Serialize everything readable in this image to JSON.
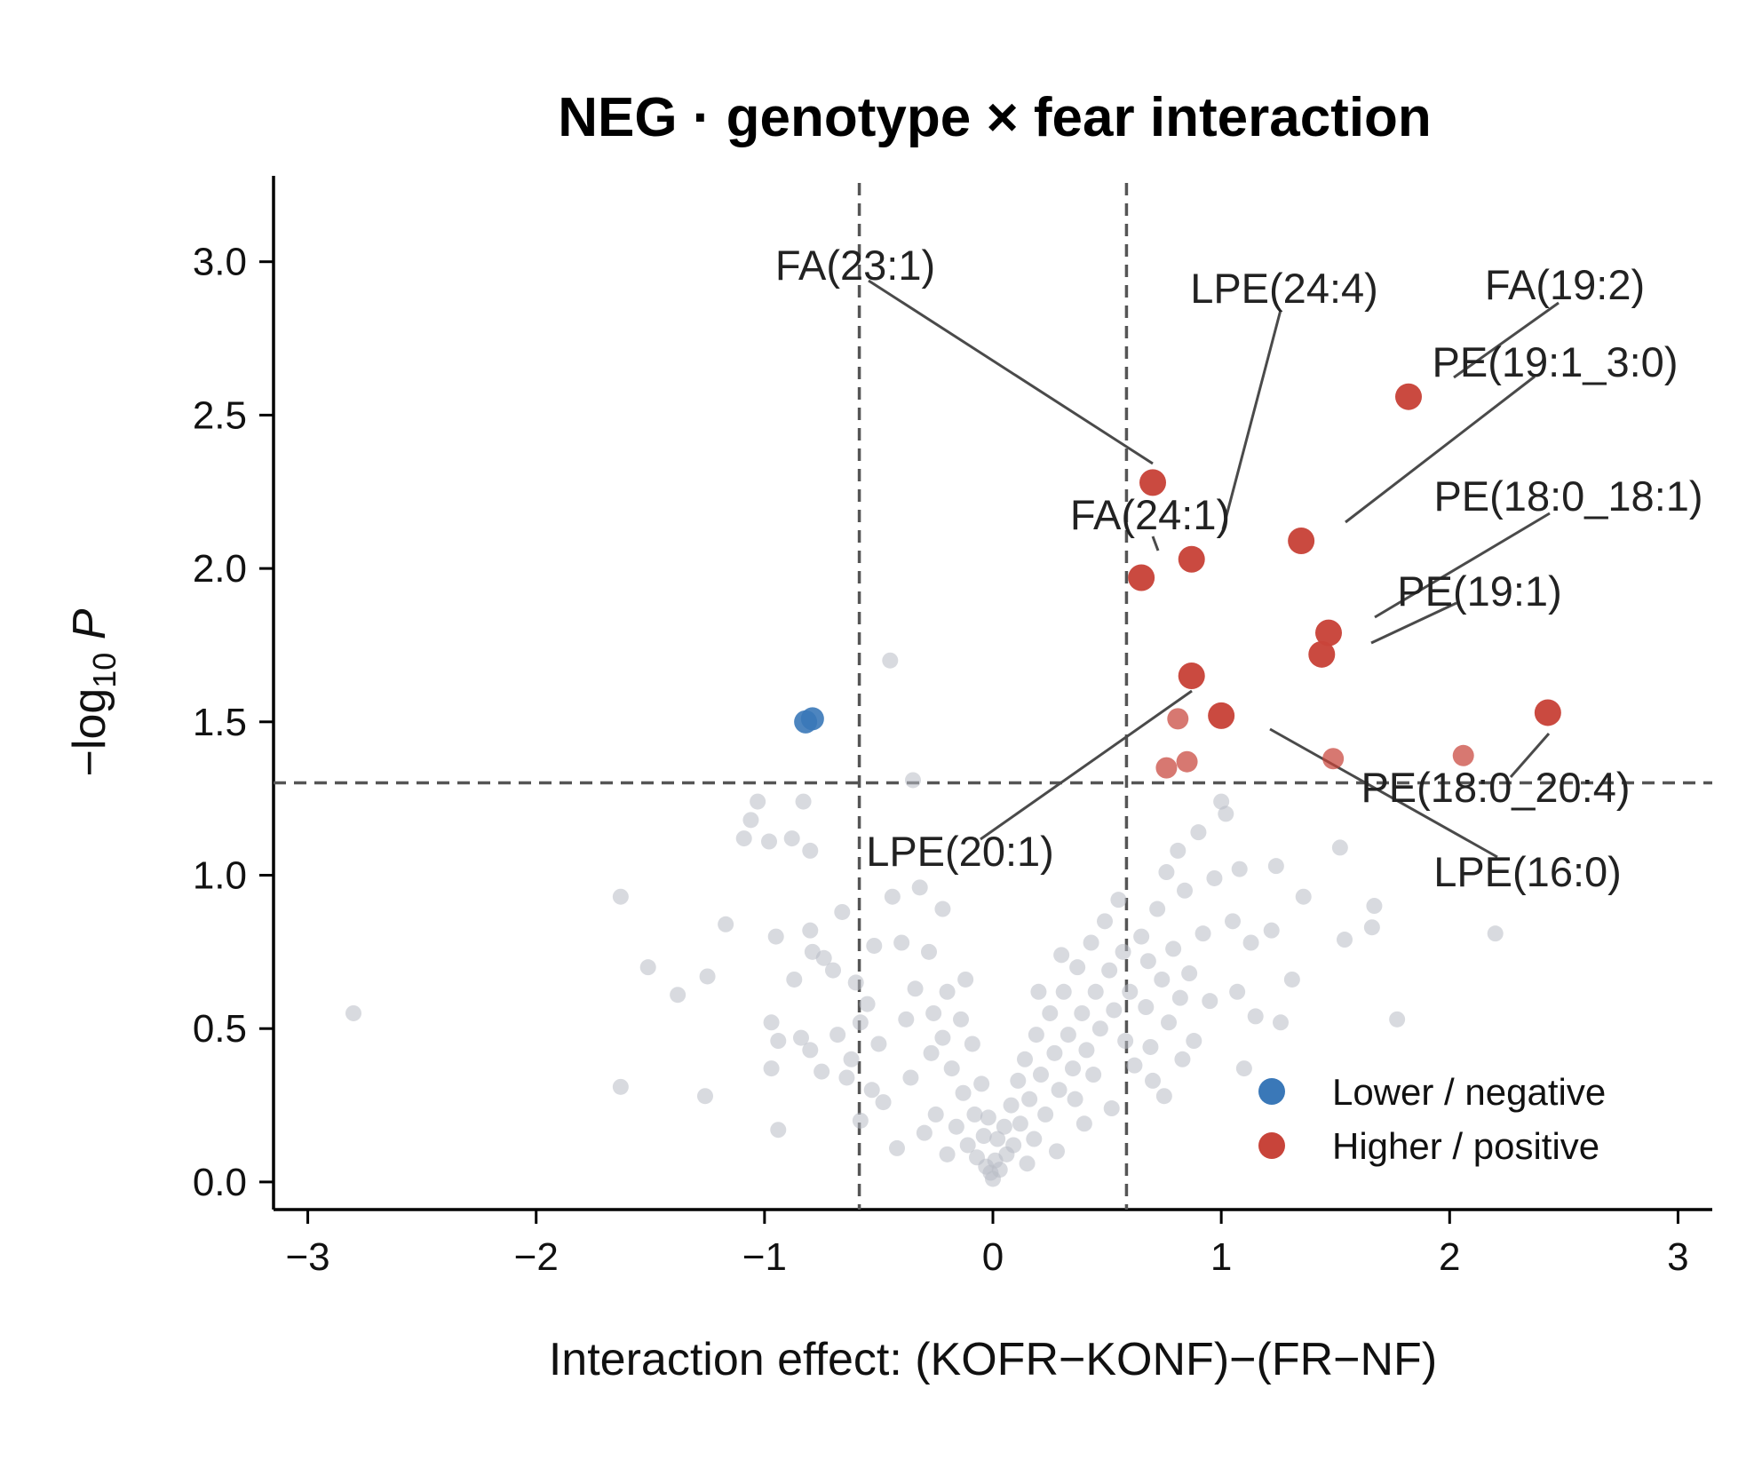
{
  "chart_data": {
    "type": "scatter",
    "title": "NEG · genotype × fear interaction",
    "xlabel": "Interaction effect: (KOFR−KONF)−(FR−NF)",
    "ylabel": "−log10 P",
    "xlim": [
      -3.15,
      3.15
    ],
    "ylim": [
      -0.09,
      3.28
    ],
    "xticks": [
      -3,
      -2,
      -1,
      0,
      1,
      2,
      3
    ],
    "xtick_labels": [
      "−3",
      "−2",
      "−1",
      "0",
      "1",
      "2",
      "3"
    ],
    "yticks": [
      0.0,
      0.5,
      1.0,
      1.5,
      2.0,
      2.5,
      3.0
    ],
    "ytick_labels": [
      "0.0",
      "0.5",
      "1.0",
      "1.5",
      "2.0",
      "2.5",
      "3.0"
    ],
    "thresholds": {
      "fold_change": [
        -0.585,
        0.585
      ],
      "neg_log10_p": 1.301
    },
    "colors": {
      "lower": "#3a78b8",
      "higher": "#c8443a",
      "nonsig": "#b8bcc4",
      "threshold_line": "#555555",
      "leader_line": "#4a4a4a"
    },
    "legend": {
      "placement": "lower-right",
      "entries": [
        {
          "label": "Lower / negative",
          "color": "#3a78b8"
        },
        {
          "label": "Higher / positive",
          "color": "#c8443a"
        }
      ]
    },
    "grid": false,
    "series": [
      {
        "category": "lower",
        "points": [
          {
            "x": -0.82,
            "y": 1.5
          },
          {
            "x": -0.79,
            "y": 1.51
          }
        ]
      },
      {
        "category": "higher",
        "points": [
          {
            "x": 1.82,
            "y": 2.56
          },
          {
            "x": 0.7,
            "y": 2.28
          },
          {
            "x": 1.35,
            "y": 2.09
          },
          {
            "x": 0.87,
            "y": 2.03
          },
          {
            "x": 0.65,
            "y": 1.97
          },
          {
            "x": 1.47,
            "y": 1.79
          },
          {
            "x": 1.44,
            "y": 1.72
          },
          {
            "x": 0.87,
            "y": 1.65
          },
          {
            "x": 1.0,
            "y": 1.52
          },
          {
            "x": 2.43,
            "y": 1.53
          },
          {
            "x": 0.81,
            "y": 1.51,
            "faint": true
          },
          {
            "x": 1.49,
            "y": 1.38,
            "faint": true
          },
          {
            "x": 2.06,
            "y": 1.39,
            "faint": true
          },
          {
            "x": 0.85,
            "y": 1.37,
            "faint": true
          },
          {
            "x": 0.76,
            "y": 1.35,
            "faint": true
          }
        ]
      },
      {
        "category": "nonsig",
        "points": [
          {
            "x": -2.8,
            "y": 0.55
          },
          {
            "x": -1.63,
            "y": 0.93
          },
          {
            "x": -1.63,
            "y": 0.31
          },
          {
            "x": -1.51,
            "y": 0.7
          },
          {
            "x": -1.38,
            "y": 0.61
          },
          {
            "x": -1.25,
            "y": 0.67
          },
          {
            "x": -1.26,
            "y": 0.28
          },
          {
            "x": -1.17,
            "y": 0.84
          },
          {
            "x": -1.09,
            "y": 1.12
          },
          {
            "x": -1.06,
            "y": 1.18
          },
          {
            "x": -1.03,
            "y": 1.24
          },
          {
            "x": -0.98,
            "y": 1.11
          },
          {
            "x": -0.95,
            "y": 0.8
          },
          {
            "x": -0.97,
            "y": 0.52
          },
          {
            "x": -0.97,
            "y": 0.37
          },
          {
            "x": -0.94,
            "y": 0.46
          },
          {
            "x": -0.94,
            "y": 0.17
          },
          {
            "x": -0.88,
            "y": 1.12
          },
          {
            "x": -0.83,
            "y": 1.24
          },
          {
            "x": -0.8,
            "y": 1.08
          },
          {
            "x": -0.8,
            "y": 0.82
          },
          {
            "x": -0.79,
            "y": 0.75
          },
          {
            "x": -0.87,
            "y": 0.66
          },
          {
            "x": -0.84,
            "y": 0.47
          },
          {
            "x": -0.8,
            "y": 0.43
          },
          {
            "x": -0.74,
            "y": 0.73
          },
          {
            "x": -0.7,
            "y": 0.69
          },
          {
            "x": -0.75,
            "y": 0.36
          },
          {
            "x": -0.68,
            "y": 0.48
          },
          {
            "x": -0.64,
            "y": 0.34
          },
          {
            "x": -0.62,
            "y": 0.4
          },
          {
            "x": -0.58,
            "y": 0.52
          },
          {
            "x": -0.55,
            "y": 0.58
          },
          {
            "x": -0.53,
            "y": 0.3
          },
          {
            "x": -0.5,
            "y": 0.45
          },
          {
            "x": -0.48,
            "y": 0.26
          },
          {
            "x": -0.45,
            "y": 1.7
          },
          {
            "x": -0.44,
            "y": 0.93
          },
          {
            "x": -0.4,
            "y": 0.78
          },
          {
            "x": -0.38,
            "y": 0.53
          },
          {
            "x": -0.36,
            "y": 0.34
          },
          {
            "x": -0.35,
            "y": 1.31
          },
          {
            "x": -0.32,
            "y": 0.96
          },
          {
            "x": -0.28,
            "y": 0.75
          },
          {
            "x": -0.27,
            "y": 0.42
          },
          {
            "x": -0.25,
            "y": 0.22
          },
          {
            "x": -0.22,
            "y": 0.89
          },
          {
            "x": -0.2,
            "y": 0.62
          },
          {
            "x": -0.18,
            "y": 0.37
          },
          {
            "x": -0.16,
            "y": 0.18
          },
          {
            "x": -0.14,
            "y": 0.53
          },
          {
            "x": -0.13,
            "y": 0.29
          },
          {
            "x": -0.11,
            "y": 0.12
          },
          {
            "x": -0.09,
            "y": 0.45
          },
          {
            "x": -0.08,
            "y": 0.22
          },
          {
            "x": -0.07,
            "y": 0.08
          },
          {
            "x": -0.05,
            "y": 0.32
          },
          {
            "x": -0.04,
            "y": 0.15
          },
          {
            "x": -0.03,
            "y": 0.05
          },
          {
            "x": -0.02,
            "y": 0.21
          },
          {
            "x": -0.01,
            "y": 0.03
          },
          {
            "x": 0.0,
            "y": 0.01
          },
          {
            "x": 0.01,
            "y": 0.07
          },
          {
            "x": 0.02,
            "y": 0.14
          },
          {
            "x": 0.03,
            "y": 0.04
          },
          {
            "x": 0.05,
            "y": 0.18
          },
          {
            "x": 0.06,
            "y": 0.09
          },
          {
            "x": 0.08,
            "y": 0.25
          },
          {
            "x": 0.09,
            "y": 0.12
          },
          {
            "x": 0.11,
            "y": 0.33
          },
          {
            "x": 0.12,
            "y": 0.19
          },
          {
            "x": 0.14,
            "y": 0.4
          },
          {
            "x": 0.16,
            "y": 0.27
          },
          {
            "x": 0.18,
            "y": 0.14
          },
          {
            "x": 0.19,
            "y": 0.48
          },
          {
            "x": 0.21,
            "y": 0.35
          },
          {
            "x": 0.23,
            "y": 0.22
          },
          {
            "x": 0.25,
            "y": 0.55
          },
          {
            "x": 0.27,
            "y": 0.42
          },
          {
            "x": 0.29,
            "y": 0.3
          },
          {
            "x": 0.31,
            "y": 0.62
          },
          {
            "x": 0.33,
            "y": 0.48
          },
          {
            "x": 0.35,
            "y": 0.37
          },
          {
            "x": 0.37,
            "y": 0.7
          },
          {
            "x": 0.39,
            "y": 0.55
          },
          {
            "x": 0.41,
            "y": 0.43
          },
          {
            "x": 0.43,
            "y": 0.78
          },
          {
            "x": 0.45,
            "y": 0.62
          },
          {
            "x": 0.47,
            "y": 0.5
          },
          {
            "x": 0.49,
            "y": 0.85
          },
          {
            "x": 0.51,
            "y": 0.69
          },
          {
            "x": 0.53,
            "y": 0.56
          },
          {
            "x": 0.55,
            "y": 0.92
          },
          {
            "x": 0.57,
            "y": 0.75
          },
          {
            "x": 0.6,
            "y": 0.62
          },
          {
            "x": 0.62,
            "y": 0.38
          },
          {
            "x": 0.65,
            "y": 0.8
          },
          {
            "x": 0.67,
            "y": 0.57
          },
          {
            "x": 0.69,
            "y": 0.44
          },
          {
            "x": 0.7,
            "y": 0.33
          },
          {
            "x": 0.72,
            "y": 0.89
          },
          {
            "x": 0.74,
            "y": 0.66
          },
          {
            "x": 0.76,
            "y": 1.01
          },
          {
            "x": 0.77,
            "y": 0.52
          },
          {
            "x": 0.79,
            "y": 0.76
          },
          {
            "x": 0.81,
            "y": 1.08
          },
          {
            "x": 0.82,
            "y": 0.6
          },
          {
            "x": 0.84,
            "y": 0.95
          },
          {
            "x": 0.86,
            "y": 0.68
          },
          {
            "x": 0.88,
            "y": 0.46
          },
          {
            "x": 0.9,
            "y": 1.14
          },
          {
            "x": 0.92,
            "y": 0.81
          },
          {
            "x": 0.95,
            "y": 0.59
          },
          {
            "x": 0.97,
            "y": 0.99
          },
          {
            "x": 1.0,
            "y": 1.24
          },
          {
            "x": 1.02,
            "y": 1.2
          },
          {
            "x": 1.05,
            "y": 0.85
          },
          {
            "x": 1.07,
            "y": 0.62
          },
          {
            "x": 1.08,
            "y": 1.02
          },
          {
            "x": 1.1,
            "y": 0.37
          },
          {
            "x": 1.13,
            "y": 0.78
          },
          {
            "x": 1.15,
            "y": 0.54
          },
          {
            "x": 1.22,
            "y": 0.82
          },
          {
            "x": 1.24,
            "y": 1.03
          },
          {
            "x": 1.26,
            "y": 0.52
          },
          {
            "x": 1.31,
            "y": 0.66
          },
          {
            "x": 1.36,
            "y": 0.93
          },
          {
            "x": 1.52,
            "y": 1.09
          },
          {
            "x": 1.54,
            "y": 0.79
          },
          {
            "x": 1.66,
            "y": 0.83
          },
          {
            "x": 1.67,
            "y": 0.9
          },
          {
            "x": 1.77,
            "y": 0.53
          },
          {
            "x": 2.2,
            "y": 0.81
          },
          {
            "x": -0.2,
            "y": 0.09
          },
          {
            "x": -0.3,
            "y": 0.16
          },
          {
            "x": -0.42,
            "y": 0.11
          },
          {
            "x": 0.15,
            "y": 0.06
          },
          {
            "x": 0.28,
            "y": 0.1
          },
          {
            "x": 0.4,
            "y": 0.19
          },
          {
            "x": -0.12,
            "y": 0.66
          },
          {
            "x": -0.22,
            "y": 0.47
          },
          {
            "x": 0.36,
            "y": 0.27
          },
          {
            "x": 0.44,
            "y": 0.35
          },
          {
            "x": 0.52,
            "y": 0.24
          },
          {
            "x": 0.58,
            "y": 0.46
          },
          {
            "x": -0.58,
            "y": 0.2
          },
          {
            "x": -0.6,
            "y": 0.65
          },
          {
            "x": 0.68,
            "y": 0.72
          },
          {
            "x": 0.75,
            "y": 0.28
          },
          {
            "x": 0.83,
            "y": 0.4
          },
          {
            "x": -0.34,
            "y": 0.63
          },
          {
            "x": -0.26,
            "y": 0.55
          },
          {
            "x": 0.2,
            "y": 0.62
          },
          {
            "x": 0.3,
            "y": 0.74
          },
          {
            "x": -0.66,
            "y": 0.88
          },
          {
            "x": -0.52,
            "y": 0.77
          }
        ]
      }
    ],
    "annotations": [
      {
        "label": "FA(23:1)",
        "point": {
          "x": 0.7,
          "y": 2.28
        }
      },
      {
        "label": "LPE(24:4)",
        "point": {
          "x": 1.0,
          "y": 2.12
        }
      },
      {
        "label": "FA(19:2)",
        "point": {
          "x": 2.05,
          "y": 2.62
        }
      },
      {
        "label": "PE(19:1_3:0)",
        "point": {
          "x": 1.55,
          "y": 2.14
        }
      },
      {
        "label": "FA(24:1)",
        "point": {
          "x": 0.73,
          "y": 2.06
        }
      },
      {
        "label": "PE(18:0_18:1)",
        "point": {
          "x": 1.69,
          "y": 1.84
        }
      },
      {
        "label": "PE(19:1)",
        "point": {
          "x": 1.67,
          "y": 1.76
        }
      },
      {
        "label": "LPE(20:1)",
        "point": {
          "x": 0.88,
          "y": 1.6
        }
      },
      {
        "label": "PE(18:0_20:4)",
        "point": {
          "x": 2.43,
          "y": 1.46
        }
      },
      {
        "label": "LPE(16:0)",
        "point": {
          "x": 1.22,
          "y": 1.47
        }
      }
    ]
  }
}
